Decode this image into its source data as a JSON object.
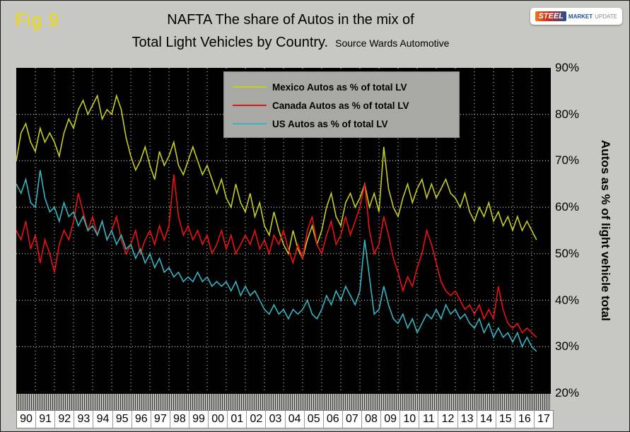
{
  "header": {
    "fig": "Fig 9",
    "title_line1": "NAFTA   The share of Autos in the mix of",
    "title_line2": "Total Light Vehicles by Country.",
    "source": "Source Wards Automotive"
  },
  "logo": {
    "steel": "STEEL",
    "market": "MARKET",
    "update": "UPDATE"
  },
  "axis": {
    "y_ticks": [
      "90%",
      "80%",
      "70%",
      "60%",
      "50%",
      "40%",
      "30%",
      "20%"
    ],
    "y_title": "Autos as % of light vehicle total"
  },
  "colors": {
    "background": "#c7c7c3",
    "plot_background": "#000000",
    "gridline": "#e6e6e6",
    "fig_label": "#f0dc00",
    "mexico": "#c6cd23",
    "canada": "#ee1111",
    "us": "#35b5c2",
    "legend_background": "#a8a8a4"
  },
  "chart_data": {
    "type": "line",
    "title": "NAFTA  The share of Autos in the mix of Total Light Vehicles by Country.",
    "source": "Source Wards Automotive",
    "ylabel": "Autos as % of light vehicle total",
    "ylim": [
      20,
      90
    ],
    "ytick_step": 10,
    "x_start_year": 1990,
    "x_end_year": 2018,
    "points_per_year": 4,
    "grid": true,
    "legend_position": "top-center",
    "x_labels": [
      "90",
      "91",
      "92",
      "93",
      "94",
      "95",
      "96",
      "97",
      "98",
      "99",
      "00",
      "01",
      "02",
      "03",
      "04",
      "05",
      "06",
      "07",
      "08",
      "09",
      "10",
      "11",
      "12",
      "13",
      "14",
      "15",
      "16",
      "17"
    ],
    "series": [
      {
        "name": "Mexico Autos as % of total LV",
        "color": "#c6cd23",
        "values": [
          70,
          76,
          78,
          74,
          72,
          77,
          74,
          76,
          74,
          71,
          76,
          79,
          77,
          81,
          83,
          80,
          82,
          84,
          79,
          81,
          80,
          84,
          81,
          75,
          71,
          68,
          70,
          73,
          69,
          66,
          72,
          69,
          71,
          74,
          69,
          67,
          70,
          73,
          70,
          67,
          69,
          66,
          63,
          66,
          62,
          60,
          65,
          61,
          59,
          63,
          58,
          61,
          56,
          54,
          59,
          55,
          52,
          50,
          55,
          51,
          49,
          53,
          56,
          52,
          55,
          60,
          63,
          58,
          56,
          61,
          63,
          60,
          62,
          65,
          60,
          63,
          59,
          73,
          64,
          60,
          58,
          62,
          65,
          61,
          64,
          66,
          62,
          65,
          62,
          64,
          66,
          63,
          62,
          60,
          63,
          59,
          57,
          60,
          58,
          61,
          57,
          59,
          56,
          58,
          55,
          58,
          55,
          57,
          55,
          53
        ]
      },
      {
        "name": "Canada Autos as % of total LV",
        "color": "#ee1111",
        "values": [
          55,
          53,
          57,
          51,
          54,
          48,
          53,
          50,
          46,
          52,
          55,
          53,
          57,
          63,
          59,
          55,
          58,
          54,
          57,
          53,
          55,
          58,
          53,
          50,
          52,
          55,
          50,
          53,
          55,
          52,
          56,
          53,
          56,
          67,
          58,
          54,
          56,
          53,
          55,
          52,
          54,
          50,
          52,
          55,
          51,
          54,
          50,
          52,
          54,
          52,
          55,
          51,
          53,
          50,
          54,
          52,
          55,
          51,
          48,
          52,
          49,
          55,
          58,
          52,
          50,
          54,
          57,
          52,
          54,
          58,
          54,
          57,
          60,
          65,
          55,
          50,
          52,
          58,
          54,
          49,
          46,
          42,
          45,
          43,
          47,
          50,
          55,
          52,
          48,
          44,
          42,
          41,
          42,
          40,
          38,
          39,
          37,
          39,
          36,
          38,
          36,
          43,
          38,
          35,
          34,
          35,
          33,
          34,
          33,
          32
        ]
      },
      {
        "name": "US Autos as % of total LV",
        "color": "#35b5c2",
        "values": [
          65,
          63,
          66,
          61,
          60,
          68,
          62,
          59,
          60,
          57,
          61,
          58,
          59,
          56,
          58,
          55,
          56,
          54,
          57,
          53,
          55,
          52,
          54,
          51,
          52,
          49,
          51,
          48,
          50,
          47,
          49,
          46,
          47,
          45,
          46,
          44,
          45,
          44,
          46,
          44,
          45,
          43,
          44,
          43,
          44,
          42,
          44,
          41,
          43,
          41,
          42,
          40,
          38,
          37,
          39,
          37,
          38,
          36,
          38,
          37,
          38,
          40,
          37,
          36,
          38,
          41,
          39,
          42,
          40,
          43,
          41,
          39,
          42,
          53,
          45,
          37,
          38,
          43,
          39,
          36,
          35,
          37,
          34,
          36,
          33,
          35,
          37,
          36,
          38,
          36,
          39,
          37,
          38,
          36,
          37,
          35,
          34,
          36,
          33,
          35,
          32,
          34,
          32,
          33,
          31,
          33,
          30,
          32,
          30,
          29
        ]
      }
    ]
  }
}
